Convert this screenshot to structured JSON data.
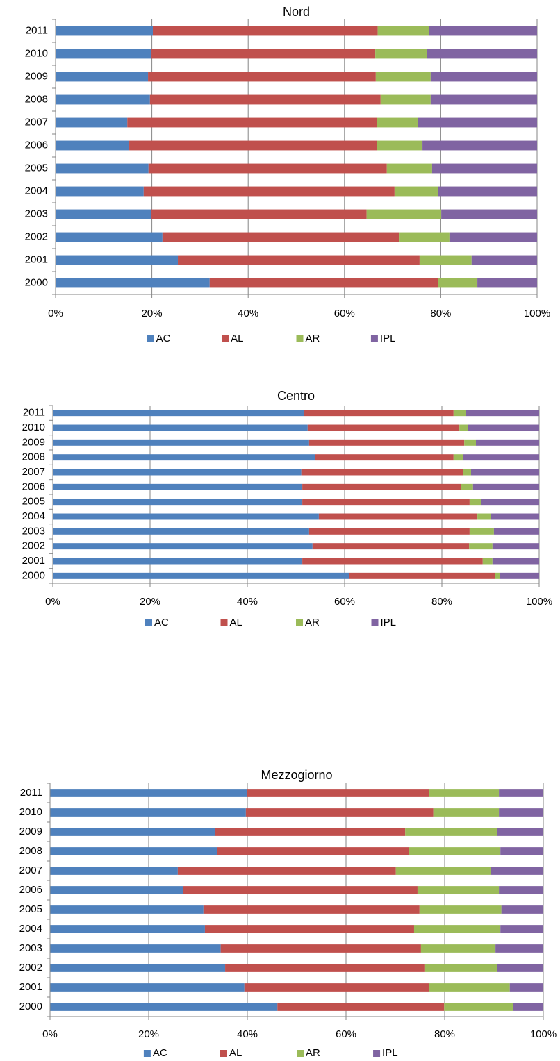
{
  "chart_data": [
    {
      "type": "bar",
      "title": "Nord",
      "orientation": "horizontal",
      "stacked": true,
      "grid": true,
      "legend": "bottom",
      "categories": [
        "2011",
        "2010",
        "2009",
        "2008",
        "2007",
        "2006",
        "2005",
        "2004",
        "2003",
        "2002",
        "2001",
        "2000"
      ],
      "series": [
        {
          "name": "AC",
          "color": "#4f81bd",
          "values": [
            20.2,
            19.9,
            19.2,
            19.6,
            14.9,
            15.3,
            19.3,
            18.3,
            19.8,
            22.2,
            25.4,
            32.0
          ]
        },
        {
          "name": "AL",
          "color": "#c0504d",
          "values": [
            46.7,
            46.5,
            47.3,
            47.9,
            51.8,
            51.4,
            49.5,
            52.1,
            44.8,
            49.1,
            50.2,
            47.4
          ]
        },
        {
          "name": "AR",
          "color": "#9bbb59",
          "values": [
            10.7,
            10.7,
            11.4,
            10.4,
            8.5,
            9.5,
            9.4,
            9.0,
            15.5,
            10.5,
            10.8,
            8.2
          ]
        },
        {
          "name": "IPL",
          "color": "#8064a2",
          "values": [
            22.4,
            22.9,
            22.1,
            22.1,
            24.8,
            23.8,
            21.8,
            20.6,
            19.9,
            18.2,
            13.6,
            12.4
          ]
        }
      ],
      "xlim": [
        0,
        100
      ],
      "xticks": [
        {
          "value": 0,
          "label": "0%"
        },
        {
          "value": 20,
          "label": "20%"
        },
        {
          "value": 40,
          "label": "40%"
        },
        {
          "value": 60,
          "label": "60%"
        },
        {
          "value": 80,
          "label": "80%"
        },
        {
          "value": 100,
          "label": "100%"
        }
      ]
    },
    {
      "type": "bar",
      "title": "Centro",
      "orientation": "horizontal",
      "stacked": true,
      "grid": true,
      "legend": "bottom",
      "categories": [
        "2011",
        "2010",
        "2009",
        "2008",
        "2007",
        "2006",
        "2005",
        "2004",
        "2003",
        "2002",
        "2001",
        "2000"
      ],
      "series": [
        {
          "name": "AC",
          "color": "#4f81bd",
          "values": [
            51.6,
            52.4,
            52.7,
            53.9,
            51.1,
            51.3,
            51.3,
            54.7,
            52.7,
            53.4,
            51.3,
            60.9
          ]
        },
        {
          "name": "AL",
          "color": "#c0504d",
          "values": [
            30.8,
            31.2,
            31.9,
            28.5,
            33.3,
            32.7,
            34.4,
            32.6,
            33.0,
            32.2,
            37.1,
            30.0
          ]
        },
        {
          "name": "AR",
          "color": "#9bbb59",
          "values": [
            2.5,
            1.7,
            2.4,
            1.9,
            1.6,
            2.4,
            2.3,
            2.7,
            5.0,
            4.8,
            2.0,
            1.1
          ]
        },
        {
          "name": "IPL",
          "color": "#8064a2",
          "values": [
            15.1,
            14.7,
            13.0,
            15.7,
            14.0,
            13.6,
            12.0,
            10.0,
            9.3,
            9.6,
            9.6,
            8.0
          ]
        }
      ],
      "xlim": [
        0,
        100
      ],
      "xticks": [
        {
          "value": 0,
          "label": "0%"
        },
        {
          "value": 20,
          "label": "20%"
        },
        {
          "value": 40,
          "label": "40%"
        },
        {
          "value": 60,
          "label": "60%"
        },
        {
          "value": 80,
          "label": "80%"
        },
        {
          "value": 100,
          "label": "100%"
        }
      ]
    },
    {
      "type": "bar",
      "title": "Mezzogiorno",
      "orientation": "horizontal",
      "stacked": true,
      "grid": true,
      "legend": "bottom",
      "categories": [
        "2011",
        "2010",
        "2009",
        "2008",
        "2007",
        "2006",
        "2005",
        "2004",
        "2003",
        "2002",
        "2001",
        "2000"
      ],
      "series": [
        {
          "name": "AC",
          "color": "#4f81bd",
          "values": [
            40.0,
            39.7,
            33.5,
            33.9,
            25.9,
            26.9,
            31.1,
            31.4,
            34.6,
            35.5,
            39.4,
            46.1
          ]
        },
        {
          "name": "AL",
          "color": "#c0504d",
          "values": [
            36.9,
            38.0,
            38.5,
            38.9,
            44.2,
            47.6,
            43.8,
            42.4,
            40.6,
            40.4,
            37.5,
            33.8
          ]
        },
        {
          "name": "AR",
          "color": "#9bbb59",
          "values": [
            14.1,
            13.3,
            18.7,
            18.5,
            19.3,
            16.5,
            16.6,
            17.5,
            15.1,
            14.8,
            16.3,
            14.0
          ]
        },
        {
          "name": "IPL",
          "color": "#8064a2",
          "values": [
            9.0,
            9.0,
            9.3,
            8.7,
            10.6,
            9.0,
            8.5,
            8.7,
            9.7,
            9.3,
            6.8,
            6.1
          ]
        }
      ],
      "xlim": [
        0,
        100
      ],
      "xticks": [
        {
          "value": 0,
          "label": "0%"
        },
        {
          "value": 20,
          "label": "20%"
        },
        {
          "value": 40,
          "label": "40%"
        },
        {
          "value": 60,
          "label": "60%"
        },
        {
          "value": 80,
          "label": "80%"
        },
        {
          "value": 100,
          "label": "100%"
        }
      ]
    }
  ]
}
